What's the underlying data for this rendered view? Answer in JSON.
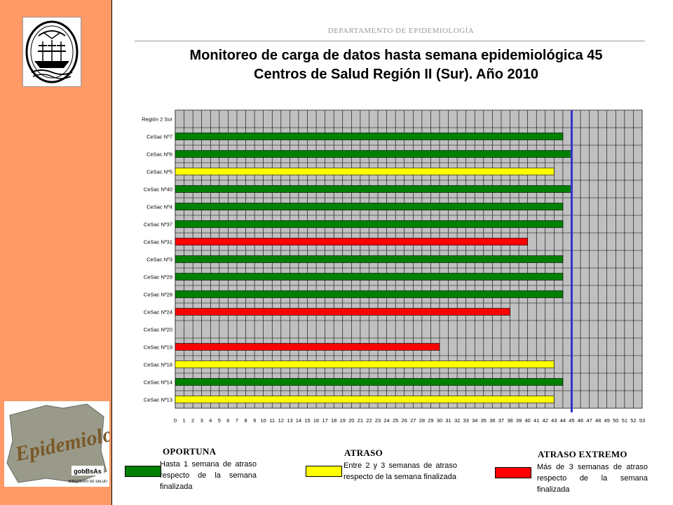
{
  "header": {
    "department": "DEPARTAMENTO DE EPIDEMIOLOGÍA",
    "title_line1": "Monitoreo de carga de datos hasta semana epidemiológica 45",
    "title_line2": "Centros de Salud Región II (Sur). Año 2010"
  },
  "logos": {
    "epi_logo_text": "Epidemiología",
    "gob_text": "gobBsAs",
    "ministry_text": "MINISTERIO DE SALUD"
  },
  "colors": {
    "sidebar": "#FF9966",
    "oportuna": "#008000",
    "atraso": "#FFFF00",
    "atraso_extremo": "#FF0000",
    "reference_line": "#3333CC",
    "plot_bg": "#C0C0C0"
  },
  "chart_data": {
    "type": "bar",
    "orientation": "horizontal",
    "categories": [
      "Región 2 Sur",
      "CeSac Nº7",
      "CeSac Nº6",
      "CeSac Nº5",
      "CeSac Nº40",
      "CeSac Nº4",
      "CeSac Nº37",
      "CeSac Nº31",
      "CeSac Nº3",
      "CeSac Nº29",
      "CeSac Nº28",
      "CeSac Nº24",
      "CeSac Nº20",
      "CeSac Nº19",
      "CeSac Nº18",
      "CeSac Nº14",
      "CeSac Nº13"
    ],
    "values": [
      null,
      44,
      45,
      43,
      45,
      44,
      44,
      40,
      44,
      44,
      44,
      38,
      null,
      30,
      43,
      44,
      43
    ],
    "status": [
      null,
      "oportuna",
      "oportuna",
      "atraso",
      "oportuna",
      "oportuna",
      "oportuna",
      "atraso_extremo",
      "oportuna",
      "oportuna",
      "oportuna",
      "atraso_extremo",
      null,
      "atraso_extremo",
      "atraso",
      "oportuna",
      "atraso"
    ],
    "xlim": [
      0,
      53
    ],
    "xticks": [
      0,
      1,
      2,
      3,
      4,
      5,
      6,
      7,
      8,
      9,
      10,
      11,
      12,
      13,
      14,
      15,
      16,
      17,
      18,
      19,
      20,
      21,
      22,
      23,
      24,
      25,
      26,
      27,
      28,
      29,
      30,
      31,
      32,
      33,
      34,
      35,
      36,
      37,
      38,
      39,
      40,
      41,
      42,
      43,
      44,
      45,
      46,
      47,
      48,
      49,
      50,
      51,
      52,
      53
    ],
    "reference_week": 45,
    "grid": true
  },
  "legend": [
    {
      "key": "oportuna",
      "title": "OPORTUNA",
      "desc": "Hasta 1 semana de atraso respecto de la semana finalizada"
    },
    {
      "key": "atraso",
      "title": "ATRASO",
      "desc": "Entre 2 y 3 semanas de atraso respecto de la semana finalizada"
    },
    {
      "key": "atraso_extremo",
      "title": "ATRASO EXTREMO",
      "desc": "Más de 3 semanas de atraso respecto de la semana finalizada"
    }
  ]
}
